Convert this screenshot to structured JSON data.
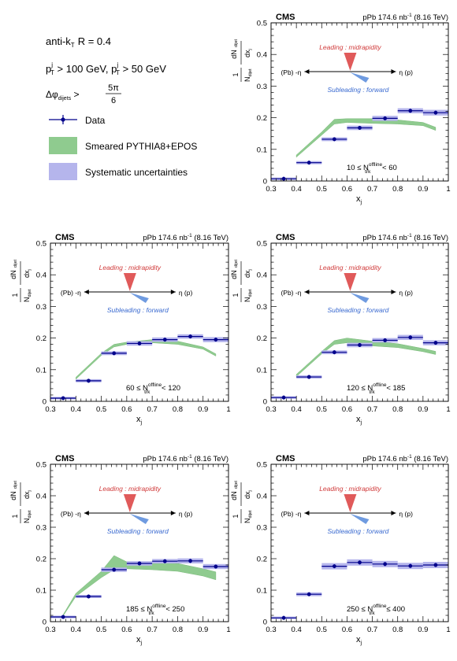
{
  "legend": {
    "algo": "anti-k",
    "algo_sub": "T",
    "radius": "R = 0.4",
    "cut1_pre": "p",
    "cut1_sup": "j",
    "cut1_sub": "T",
    "cut1_val": " > 100 GeV, ",
    "cut2_pre": "p",
    "cut2_sup": "j",
    "cut2_sub": "T",
    "cut2_val": " > 50 GeV",
    "dphi_pre": "Δφ",
    "dphi_sub": "dijets",
    "dphi_gt": " > ",
    "dphi_num": "5π",
    "dphi_den": "6",
    "entries": [
      "Data",
      "Smeared PYTHIA8+EPOS",
      "Systematic uncertainties"
    ],
    "colors": {
      "data": "#00008b",
      "model": "#7ec27e",
      "syst": "#aaaaee"
    }
  },
  "chart_data": [
    {
      "type": "scatter",
      "panel": 1,
      "experiment": "CMS",
      "lumi": "pPb 174.6 nb",
      "lumi_sup": "-1",
      "energy": " (8.16 TeV)",
      "xlabel": "x",
      "xlabel_sub": "j",
      "ylabel": "1/N dN/dx",
      "xlim": [
        0.3,
        1.0
      ],
      "ylim": [
        0,
        0.5
      ],
      "xticks": [
        "0.3",
        "0.4",
        "0.5",
        "0.6",
        "0.7",
        "0.8",
        "0.9",
        "1"
      ],
      "yticks": [
        "0",
        "0.1",
        "0.2",
        "0.3",
        "0.4",
        "0.5"
      ],
      "bin_label_pre": "10 ≤ N",
      "bin_label_sup": "offline",
      "bin_label_sub": "trk",
      "bin_label_post": " < 60",
      "schematic": {
        "leading": "Leading : midrapidity",
        "subleading": "Subleading : forward",
        "left": "(Pb) -η",
        "right": "η (p)"
      },
      "x": [
        0.35,
        0.45,
        0.55,
        0.65,
        0.75,
        0.85,
        0.95
      ],
      "y": [
        0.007,
        0.058,
        0.132,
        0.168,
        0.198,
        0.222,
        0.216
      ],
      "syst": [
        0.004,
        0.005,
        0.006,
        0.007,
        0.008,
        0.008,
        0.009
      ],
      "model_x": [
        0.4,
        0.5,
        0.55,
        0.6,
        0.7,
        0.8,
        0.9,
        0.95
      ],
      "model_lo": [
        0.075,
        0.145,
        0.18,
        0.185,
        0.182,
        0.18,
        0.175,
        0.16
      ],
      "model_hi": [
        0.082,
        0.155,
        0.195,
        0.197,
        0.197,
        0.193,
        0.185,
        0.17
      ]
    },
    {
      "type": "scatter",
      "panel": 2,
      "experiment": "CMS",
      "lumi": "pPb 174.6 nb",
      "lumi_sup": "-1",
      "energy": " (8.16 TeV)",
      "xlabel": "x",
      "xlabel_sub": "j",
      "ylabel": "1/N dN/dx",
      "xlim": [
        0.3,
        1.0
      ],
      "ylim": [
        0,
        0.5
      ],
      "xticks": [
        "0.3",
        "0.4",
        "0.5",
        "0.6",
        "0.7",
        "0.8",
        "0.9",
        "1"
      ],
      "yticks": [
        "0",
        "0.1",
        "0.2",
        "0.3",
        "0.4",
        "0.5"
      ],
      "bin_label_pre": "60 ≤ N",
      "bin_label_sup": "offline",
      "bin_label_sub": "trk",
      "bin_label_post": " < 120",
      "schematic": {
        "leading": "Leading : midrapidity",
        "subleading": "Subleading : forward",
        "left": "(Pb) -η",
        "right": "η (p)"
      },
      "x": [
        0.35,
        0.45,
        0.55,
        0.65,
        0.75,
        0.85,
        0.95
      ],
      "y": [
        0.01,
        0.065,
        0.152,
        0.183,
        0.195,
        0.205,
        0.195
      ],
      "syst": [
        0.004,
        0.005,
        0.006,
        0.007,
        0.007,
        0.007,
        0.008
      ],
      "model_x": [
        0.4,
        0.5,
        0.55,
        0.6,
        0.7,
        0.8,
        0.9,
        0.95
      ],
      "model_lo": [
        0.07,
        0.145,
        0.172,
        0.18,
        0.185,
        0.18,
        0.165,
        0.143
      ],
      "model_hi": [
        0.076,
        0.152,
        0.18,
        0.187,
        0.195,
        0.19,
        0.172,
        0.15
      ]
    },
    {
      "type": "scatter",
      "panel": 3,
      "experiment": "CMS",
      "lumi": "pPb 174.6 nb",
      "lumi_sup": "-1",
      "energy": " (8.16 TeV)",
      "xlabel": "x",
      "xlabel_sub": "j",
      "ylabel": "1/N dN/dx",
      "xlim": [
        0.3,
        1.0
      ],
      "ylim": [
        0,
        0.5
      ],
      "xticks": [
        "0.3",
        "0.4",
        "0.5",
        "0.6",
        "0.7",
        "0.8",
        "0.9",
        "1"
      ],
      "yticks": [
        "0",
        "0.1",
        "0.2",
        "0.3",
        "0.4",
        "0.5"
      ],
      "bin_label_pre": "120 ≤ N",
      "bin_label_sup": "offline",
      "bin_label_sub": "trk",
      "bin_label_post": " < 185",
      "schematic": {
        "leading": "Leading : midrapidity",
        "subleading": "Subleading : forward",
        "left": "(Pb) -η",
        "right": "η (p)"
      },
      "x": [
        0.35,
        0.45,
        0.55,
        0.65,
        0.75,
        0.85,
        0.95
      ],
      "y": [
        0.012,
        0.077,
        0.155,
        0.178,
        0.193,
        0.202,
        0.185
      ],
      "syst": [
        0.004,
        0.005,
        0.006,
        0.007,
        0.007,
        0.008,
        0.008
      ],
      "model_x": [
        0.4,
        0.5,
        0.55,
        0.6,
        0.7,
        0.8,
        0.9,
        0.95
      ],
      "model_lo": [
        0.078,
        0.15,
        0.18,
        0.185,
        0.175,
        0.17,
        0.157,
        0.148
      ],
      "model_hi": [
        0.085,
        0.158,
        0.192,
        0.2,
        0.19,
        0.182,
        0.167,
        0.158
      ]
    },
    {
      "type": "scatter",
      "panel": 4,
      "experiment": "CMS",
      "lumi": "pPb 174.6 nb",
      "lumi_sup": "-1",
      "energy": " (8.16 TeV)",
      "xlabel": "x",
      "xlabel_sub": "j",
      "ylabel": "1/N dN/dx",
      "xlim": [
        0.3,
        1.0
      ],
      "ylim": [
        0,
        0.5
      ],
      "xticks": [
        "0.3",
        "0.4",
        "0.5",
        "0.6",
        "0.7",
        "0.8",
        "0.9",
        "1"
      ],
      "yticks": [
        "0",
        "0.1",
        "0.2",
        "0.3",
        "0.4",
        "0.5"
      ],
      "bin_label_pre": "185 ≤ N",
      "bin_label_sup": "offline",
      "bin_label_sub": "trk",
      "bin_label_post": " < 250",
      "schematic": {
        "leading": "Leading : midrapidity",
        "subleading": "Subleading : forward",
        "left": "(Pb) -η",
        "right": "η (p)"
      },
      "x": [
        0.35,
        0.45,
        0.55,
        0.65,
        0.75,
        0.85,
        0.95
      ],
      "y": [
        0.015,
        0.08,
        0.165,
        0.185,
        0.192,
        0.193,
        0.175
      ],
      "syst": [
        0.004,
        0.005,
        0.007,
        0.007,
        0.007,
        0.008,
        0.008
      ],
      "model_x": [
        0.35,
        0.4,
        0.5,
        0.55,
        0.6,
        0.7,
        0.8,
        0.9,
        0.95
      ],
      "model_lo": [
        0.018,
        0.08,
        0.14,
        0.165,
        0.168,
        0.165,
        0.16,
        0.145,
        0.133
      ],
      "model_hi": [
        0.022,
        0.09,
        0.16,
        0.21,
        0.19,
        0.19,
        0.185,
        0.168,
        0.158
      ]
    },
    {
      "type": "scatter",
      "panel": 5,
      "experiment": "CMS",
      "lumi": "pPb 174.6 nb",
      "lumi_sup": "-1",
      "energy": " (8.16 TeV)",
      "xlabel": "x",
      "xlabel_sub": "j",
      "ylabel": "1/N dN/dx",
      "xlim": [
        0.3,
        1.0
      ],
      "ylim": [
        0,
        0.5
      ],
      "xticks": [
        "0.3",
        "0.4",
        "0.5",
        "0.6",
        "0.7",
        "0.8",
        "0.9",
        "1"
      ],
      "yticks": [
        "0",
        "0.1",
        "0.2",
        "0.3",
        "0.4",
        "0.5"
      ],
      "bin_label_pre": "250 ≤ N",
      "bin_label_sup": "offline",
      "bin_label_sub": "trk",
      "bin_label_post": " ≤ 400",
      "schematic": {
        "leading": "Leading : midrapidity",
        "subleading": "Subleading : forward",
        "left": "(Pb) -η",
        "right": "η (p)"
      },
      "x": [
        0.35,
        0.45,
        0.55,
        0.65,
        0.75,
        0.85,
        0.95
      ],
      "y": [
        0.012,
        0.087,
        0.176,
        0.188,
        0.183,
        0.177,
        0.18
      ],
      "syst": [
        0.004,
        0.006,
        0.01,
        0.01,
        0.01,
        0.01,
        0.01
      ],
      "model_x": [],
      "model_lo": [],
      "model_hi": []
    }
  ]
}
